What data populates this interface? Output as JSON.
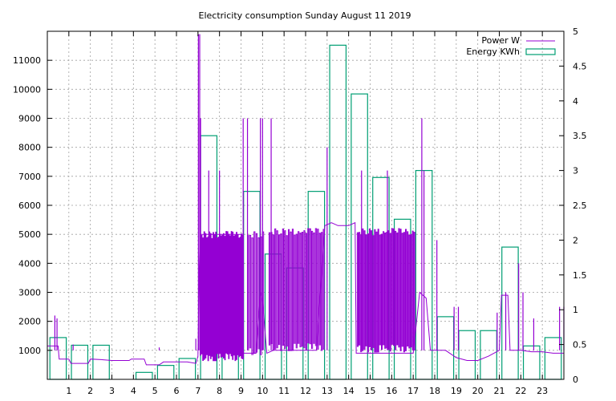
{
  "chart_data": {
    "type": "line",
    "title": "Electricity consumption Sunday August 11 2019",
    "xlabel": "",
    "ylabel": "",
    "x_ticks": [
      1,
      2,
      3,
      4,
      5,
      6,
      7,
      8,
      9,
      10,
      11,
      12,
      13,
      14,
      15,
      16,
      17,
      18,
      19,
      20,
      21,
      22,
      23
    ],
    "xlim": [
      0,
      24
    ],
    "ylim": [
      0,
      12000
    ],
    "y_ticks": [
      1000,
      2000,
      3000,
      4000,
      5000,
      6000,
      7000,
      8000,
      9000,
      10000,
      11000
    ],
    "y2lim": [
      0,
      5
    ],
    "y2_ticks": [
      "0",
      "0.5",
      "1",
      "1.5",
      "2",
      "2.5",
      "3",
      "3.5",
      "4",
      "4.5",
      "5"
    ],
    "grid": true,
    "legend_position": "top-right",
    "colors": {
      "power": "#9400d3",
      "energy": "#009e73"
    },
    "series": [
      {
        "name": "Power W",
        "axis": "left",
        "style": "line",
        "baseline": [
          [
            0.0,
            1150
          ],
          [
            0.5,
            1150
          ],
          [
            0.55,
            700
          ],
          [
            1.0,
            700
          ],
          [
            1.1,
            550
          ],
          [
            1.9,
            550
          ],
          [
            2.0,
            700
          ],
          [
            2.5,
            680
          ],
          [
            3.0,
            650
          ],
          [
            3.8,
            650
          ],
          [
            3.9,
            700
          ],
          [
            4.5,
            700
          ],
          [
            4.6,
            500
          ],
          [
            5.2,
            500
          ],
          [
            5.4,
            600
          ],
          [
            6.5,
            600
          ],
          [
            6.9,
            550
          ],
          [
            7.0,
            800
          ],
          [
            7.05,
            3500
          ],
          [
            7.1,
            5000
          ],
          [
            9.0,
            5000
          ],
          [
            9.1,
            900
          ],
          [
            9.7,
            900
          ],
          [
            9.9,
            3000
          ],
          [
            10.0,
            2700
          ],
          [
            10.2,
            900
          ],
          [
            10.5,
            1000
          ],
          [
            11.0,
            1000
          ],
          [
            11.5,
            1000
          ],
          [
            12.0,
            1000
          ],
          [
            12.5,
            1000
          ],
          [
            12.9,
            5300
          ],
          [
            13.2,
            5400
          ],
          [
            13.5,
            5300
          ],
          [
            14.0,
            5300
          ],
          [
            14.3,
            5400
          ],
          [
            14.35,
            900
          ],
          [
            15.0,
            900
          ],
          [
            16.0,
            900
          ],
          [
            17.0,
            900
          ],
          [
            17.3,
            3000
          ],
          [
            17.6,
            2800
          ],
          [
            17.8,
            1000
          ],
          [
            18.5,
            1000
          ],
          [
            19.0,
            750
          ],
          [
            19.5,
            650
          ],
          [
            20.0,
            650
          ],
          [
            20.5,
            800
          ],
          [
            21.0,
            1000
          ],
          [
            21.1,
            2900
          ],
          [
            21.4,
            2900
          ],
          [
            21.5,
            1000
          ],
          [
            22.0,
            1000
          ],
          [
            22.5,
            950
          ],
          [
            23.0,
            950
          ],
          [
            23.5,
            900
          ],
          [
            24.0,
            900
          ]
        ],
        "spikes_ranges": [
          {
            "from": 7.1,
            "to": 9.1,
            "low": 600,
            "high": 5100,
            "step": 0.06
          },
          {
            "from": 9.3,
            "to": 10.0,
            "low": 800,
            "high": 5100,
            "step": 0.1
          },
          {
            "from": 10.3,
            "to": 12.9,
            "low": 950,
            "high": 5200,
            "step": 0.09
          },
          {
            "from": 14.4,
            "to": 17.1,
            "low": 900,
            "high": 5200,
            "step": 0.08
          }
        ],
        "spikes": [
          [
            0.35,
            2200
          ],
          [
            0.45,
            2100
          ],
          [
            1.2,
            1200
          ],
          [
            2.3,
            1000
          ],
          [
            5.2,
            1100
          ],
          [
            6.9,
            1400
          ],
          [
            7.02,
            11900
          ],
          [
            7.08,
            11900
          ],
          [
            7.12,
            9000
          ],
          [
            7.5,
            7200
          ],
          [
            8.0,
            7200
          ],
          [
            9.1,
            9000
          ],
          [
            9.3,
            9000
          ],
          [
            9.9,
            9000
          ],
          [
            10.0,
            9000
          ],
          [
            10.4,
            9000
          ],
          [
            13.0,
            8000
          ],
          [
            14.6,
            7200
          ],
          [
            15.8,
            7200
          ],
          [
            17.4,
            9000
          ],
          [
            17.5,
            7200
          ],
          [
            18.1,
            4800
          ],
          [
            18.9,
            2500
          ],
          [
            19.1,
            2500
          ],
          [
            20.9,
            2300
          ],
          [
            21.3,
            3000
          ],
          [
            21.9,
            4000
          ],
          [
            22.1,
            3000
          ],
          [
            22.6,
            2100
          ],
          [
            23.8,
            2500
          ],
          [
            24.0,
            2500
          ]
        ]
      },
      {
        "name": "Energy KWh",
        "axis": "right",
        "style": "histeps",
        "x": [
          0,
          1,
          2,
          3,
          4,
          5,
          6,
          7,
          8,
          9,
          10,
          11,
          12,
          13,
          14,
          15,
          16,
          17,
          18,
          19,
          20,
          21,
          22,
          23
        ],
        "values": [
          0.6,
          0.49,
          0.49,
          0.0,
          0.1,
          0.2,
          0.3,
          3.5,
          1.8,
          2.7,
          1.8,
          1.6,
          2.7,
          4.8,
          4.1,
          2.9,
          2.3,
          3.0,
          0.9,
          0.7,
          0.7,
          1.9,
          0.48,
          0.6
        ]
      }
    ]
  }
}
